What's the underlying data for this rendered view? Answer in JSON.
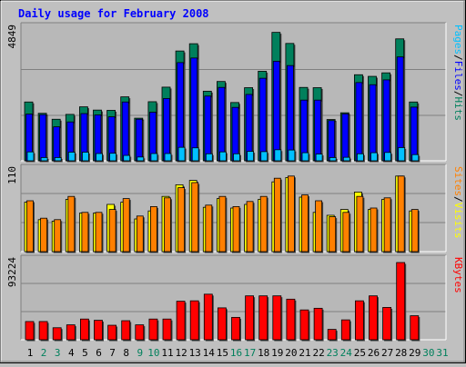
{
  "title": "Daily usage for February 2008",
  "colors": {
    "background": "#c0c0c0",
    "plot_bg": "#b8b8b8",
    "title": "#0000ff",
    "hits": "#00805c",
    "files": "#0000ff",
    "pages": "#00c0ff",
    "visits": "#ffff00",
    "sites": "#ff8000",
    "kbytes": "#ff0000",
    "weekend_label": "#00805c",
    "weekday_label": "#000000"
  },
  "chart_data": [
    {
      "type": "bar",
      "panel": "hits-files-pages",
      "y_max_label": "4849",
      "ylim": [
        0,
        4849
      ],
      "legend": [
        "Pages",
        "/",
        "Files",
        "/",
        "Hits"
      ],
      "x": [
        1,
        2,
        3,
        4,
        5,
        6,
        7,
        8,
        9,
        10,
        11,
        12,
        13,
        14,
        15,
        16,
        17,
        18,
        19,
        20,
        21,
        22,
        23,
        24,
        25,
        26,
        27,
        28,
        29
      ],
      "series": [
        {
          "name": "Hits",
          "values": [
            2180,
            1760,
            1540,
            1720,
            2000,
            1880,
            1870,
            2370,
            1580,
            2190,
            2730,
            4070,
            4340,
            2580,
            2940,
            2160,
            2710,
            3320,
            4760,
            4350,
            2720,
            2710,
            1530,
            1780,
            3190,
            3130,
            3260,
            4520,
            2180
          ]
        },
        {
          "name": "Files",
          "values": [
            1730,
            1710,
            1260,
            1440,
            1750,
            1700,
            1630,
            2180,
            1540,
            1800,
            2310,
            3640,
            3810,
            2400,
            2720,
            1980,
            2460,
            3060,
            3690,
            3530,
            2250,
            2250,
            1490,
            1740,
            2900,
            2820,
            3000,
            3850,
            1990
          ]
        },
        {
          "name": "Pages",
          "values": [
            330,
            120,
            120,
            320,
            320,
            270,
            280,
            200,
            140,
            270,
            270,
            500,
            480,
            260,
            330,
            260,
            350,
            340,
            410,
            400,
            300,
            250,
            120,
            130,
            260,
            300,
            310,
            490,
            230
          ]
        }
      ]
    },
    {
      "type": "bar",
      "panel": "visits-sites",
      "y_max_label": "110",
      "ylim": [
        0,
        110
      ],
      "legend": [
        "Sites",
        "/",
        "Visits"
      ],
      "x": [
        1,
        2,
        3,
        4,
        5,
        6,
        7,
        8,
        9,
        10,
        11,
        12,
        13,
        14,
        15,
        16,
        17,
        18,
        19,
        20,
        21,
        22,
        23,
        24,
        25,
        26,
        27,
        28,
        29
      ],
      "series": [
        {
          "name": "Visits",
          "values": [
            68,
            44,
            42,
            72,
            53,
            53,
            65,
            68,
            45,
            56,
            76,
            92,
            98,
            61,
            73,
            60,
            65,
            72,
            96,
            102,
            75,
            54,
            50,
            58,
            82,
            58,
            72,
            104,
            56
          ]
        },
        {
          "name": "Sites",
          "values": [
            70,
            46,
            44,
            76,
            54,
            54,
            58,
            73,
            49,
            62,
            74,
            88,
            95,
            64,
            76,
            62,
            69,
            76,
            101,
            104,
            78,
            70,
            48,
            54,
            76,
            60,
            74,
            104,
            58
          ]
        }
      ]
    },
    {
      "type": "bar",
      "panel": "kbytes",
      "y_max_label": "93224",
      "ylim": [
        0,
        93224
      ],
      "legend": [
        "KBytes"
      ],
      "x": [
        1,
        2,
        3,
        4,
        5,
        6,
        7,
        8,
        9,
        10,
        11,
        12,
        13,
        14,
        15,
        16,
        17,
        18,
        19,
        20,
        21,
        22,
        23,
        24,
        25,
        26,
        27,
        28,
        29
      ],
      "series": [
        {
          "name": "KBytes",
          "values": [
            22000,
            22000,
            14500,
            18000,
            25000,
            23500,
            17500,
            23000,
            18000,
            25000,
            25000,
            46500,
            47000,
            55000,
            38500,
            27000,
            53000,
            53000,
            53000,
            49000,
            36000,
            38000,
            12500,
            24000,
            47000,
            53000,
            39000,
            93224,
            29000
          ]
        }
      ]
    }
  ],
  "x_labels": [
    "1",
    "2",
    "3",
    "4",
    "5",
    "6",
    "7",
    "8",
    "9",
    "10",
    "11",
    "12",
    "13",
    "14",
    "15",
    "16",
    "17",
    "18",
    "19",
    "20",
    "21",
    "22",
    "23",
    "24",
    "25",
    "26",
    "27",
    "28",
    "29",
    "30",
    "31"
  ],
  "weekend_days": [
    2,
    3,
    9,
    10,
    16,
    17,
    23,
    24,
    30,
    31
  ]
}
